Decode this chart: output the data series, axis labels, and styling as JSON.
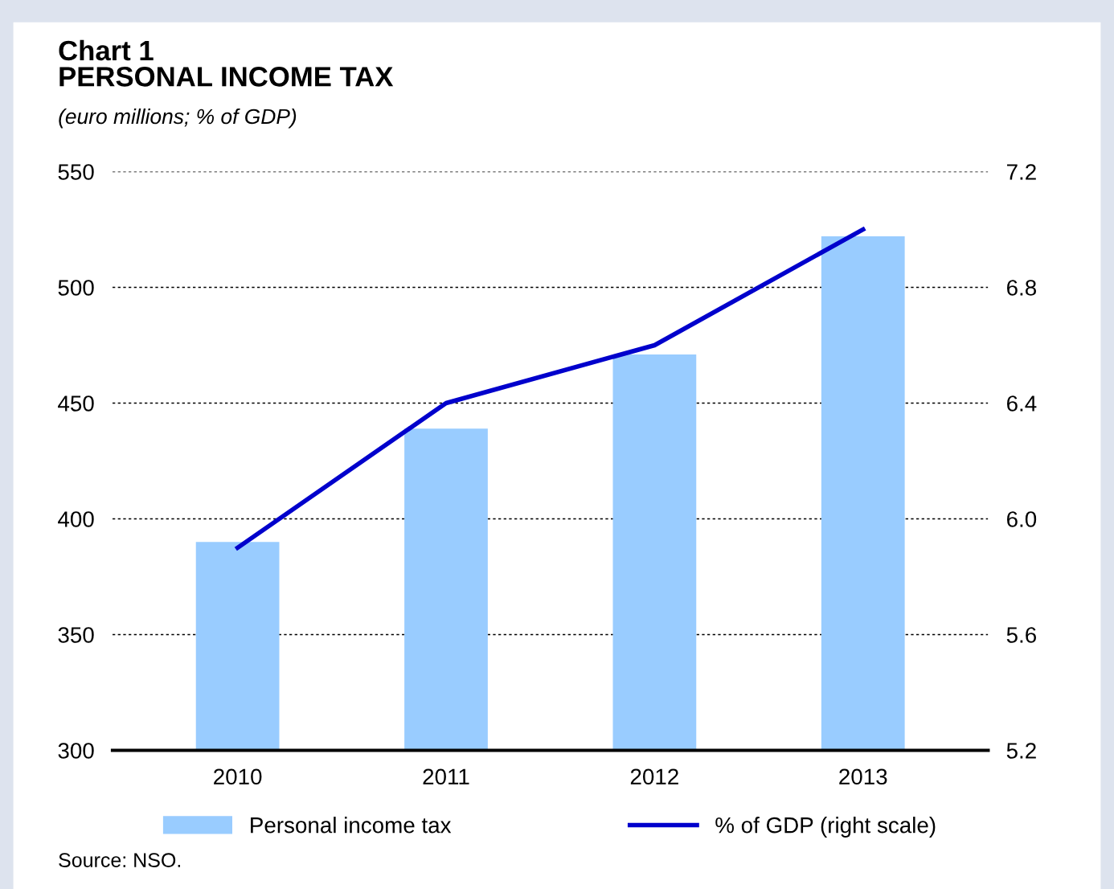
{
  "chart_data": {
    "type": "bar",
    "title": "Chart 1\nPERSONAL INCOME TAX",
    "subtitle": "(euro millions; % of GDP)",
    "categories": [
      "2010",
      "2011",
      "2012",
      "2013"
    ],
    "series": [
      {
        "name": "Personal income tax",
        "color": "#99ccff",
        "values": [
          390,
          439,
          471,
          522
        ]
      },
      {
        "name": "% of GDP (right scale)",
        "type": "line",
        "axis": "y2",
        "color": "#0000cc",
        "values": [
          5.9,
          6.4,
          6.6,
          7.0
        ]
      }
    ],
    "ylim": [
      300,
      550
    ],
    "yticks": [
      300,
      350,
      400,
      450,
      500,
      550
    ],
    "y2lim": [
      5.2,
      7.2
    ],
    "y2ticks": [
      {
        "value": 5.2,
        "label": "5.2"
      },
      {
        "value": 5.6,
        "label": "5.6"
      },
      {
        "value": 6.0,
        "label": "6.0"
      },
      {
        "value": 6.4,
        "label": "6.4"
      },
      {
        "value": 6.8,
        "label": "6.8"
      },
      {
        "value": 7.2,
        "label": "7.2"
      }
    ],
    "grid": "y",
    "legend": "bottom",
    "marker": "none",
    "line_style": "solid",
    "annotations": [
      "Source: NSO."
    ]
  }
}
